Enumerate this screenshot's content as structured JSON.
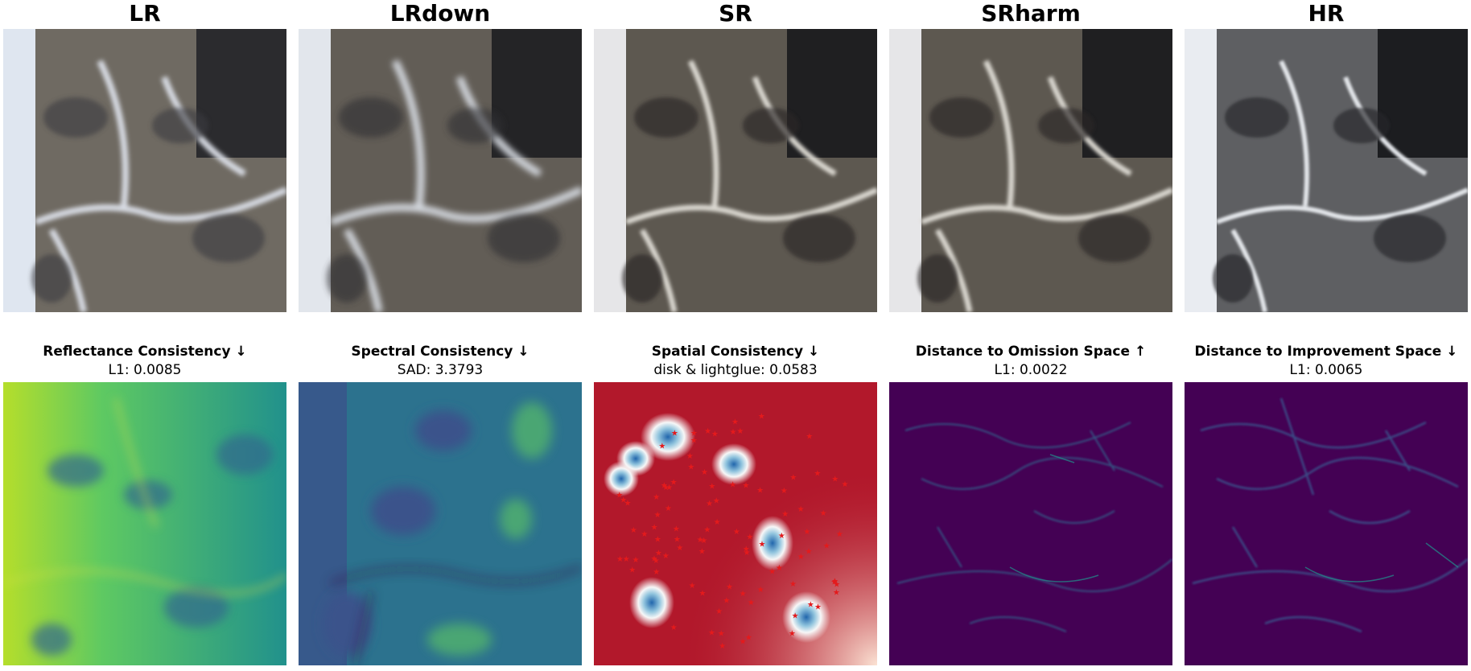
{
  "panels": [
    {
      "title": "LR",
      "metric_name": "Reflectance Consistency",
      "metric_arrow": "↓",
      "metric_value": "L1: 0.0085",
      "map": "viridis-bright"
    },
    {
      "title": "LRdown",
      "metric_name": "Spectral Consistency",
      "metric_arrow": "↓",
      "metric_value": "SAD: 3.3793",
      "map": "viridis-mid"
    },
    {
      "title": "SR",
      "metric_name": "Spatial Consistency",
      "metric_arrow": "↓",
      "metric_value": "disk & lightglue: 0.0583",
      "map": "rdbu-keypoints"
    },
    {
      "title": "SRharm",
      "metric_name": "Distance to Omission Space",
      "metric_arrow": "↑",
      "metric_value": "L1: 0.0022",
      "map": "viridis-dark"
    },
    {
      "title": "HR",
      "metric_name": "Distance to Improvement Space",
      "metric_arrow": "↓",
      "metric_value": "L1: 0.0065",
      "map": "viridis-dark"
    }
  ],
  "colors": {
    "viridis_dark": "#440154",
    "viridis_mid": "#31688e",
    "viridis_teal": "#21918c",
    "viridis_green": "#5ec962",
    "viridis_yellow": "#fde725",
    "rdbu_red": "#b2182b",
    "rdbu_white": "#f7f7f7",
    "rdbu_blue": "#2166ac",
    "keypoint": "#e41a1c"
  }
}
